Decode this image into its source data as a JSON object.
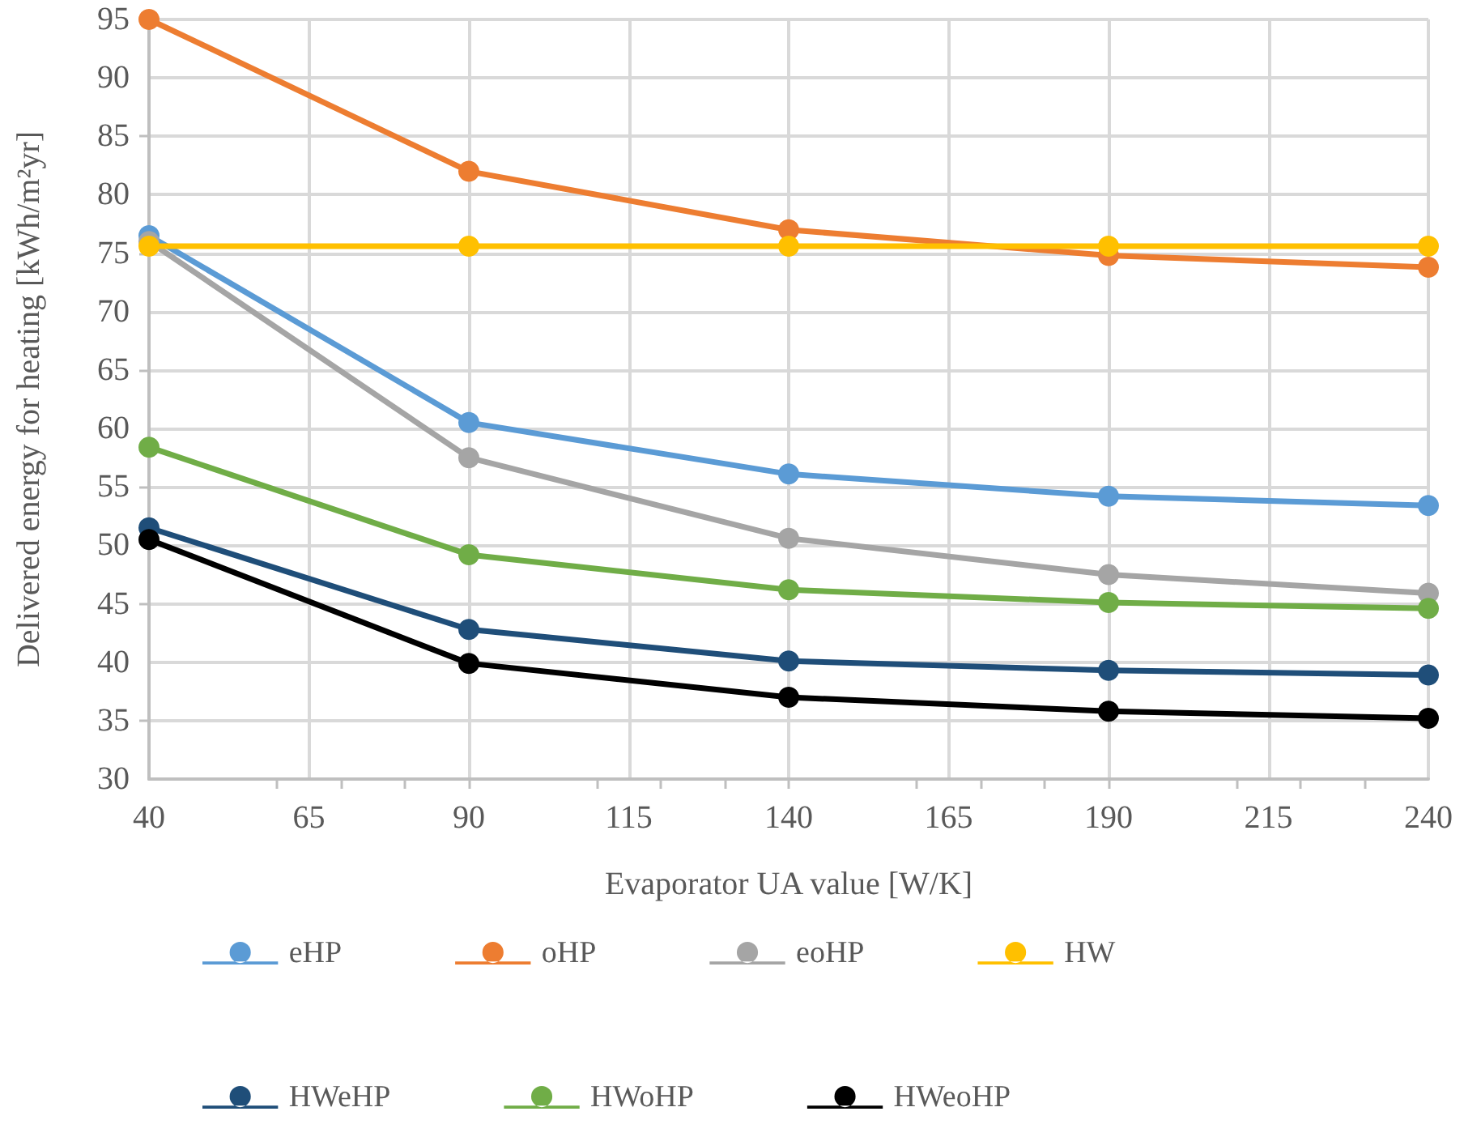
{
  "chart_data": {
    "type": "line",
    "xlabel": "Evaporator UA value [W/K]",
    "ylabel": "Delivered energy for heating [kWh/m²yr]",
    "x": [
      40,
      90,
      140,
      190,
      240
    ],
    "xlim": [
      40,
      240
    ],
    "xticks": [
      40,
      65,
      90,
      115,
      140,
      165,
      190,
      215,
      240
    ],
    "ylim": [
      30,
      95
    ],
    "yticks": [
      30,
      35,
      40,
      45,
      50,
      55,
      60,
      65,
      70,
      75,
      80,
      85,
      90,
      95
    ],
    "grid": true,
    "legend": "bottom",
    "marker": "circle",
    "line_style": "solid",
    "series": [
      {
        "name": "eHP",
        "color": "#5b9bd5",
        "values": [
          76.5,
          60.5,
          56.1,
          54.2,
          53.4
        ]
      },
      {
        "name": "oHP",
        "color": "#ed7d31",
        "values": [
          95,
          82,
          77,
          74.8,
          73.8
        ]
      },
      {
        "name": "eoHP",
        "color": "#a5a5a5",
        "values": [
          76,
          57.5,
          50.6,
          47.5,
          45.9
        ]
      },
      {
        "name": "HW",
        "color": "#ffc000",
        "values": [
          75.6,
          75.6,
          75.6,
          75.6,
          75.6
        ]
      },
      {
        "name": "HWeHP",
        "color": "#1f4e79",
        "values": [
          51.5,
          42.8,
          40.1,
          39.3,
          38.9
        ]
      },
      {
        "name": "HWoHP",
        "color": "#70ad47",
        "values": [
          58.4,
          49.2,
          46.2,
          45.1,
          44.6
        ]
      },
      {
        "name": "HWeoHP",
        "color": "#000000",
        "values": [
          50.5,
          39.9,
          37.0,
          35.8,
          35.2
        ]
      }
    ]
  }
}
